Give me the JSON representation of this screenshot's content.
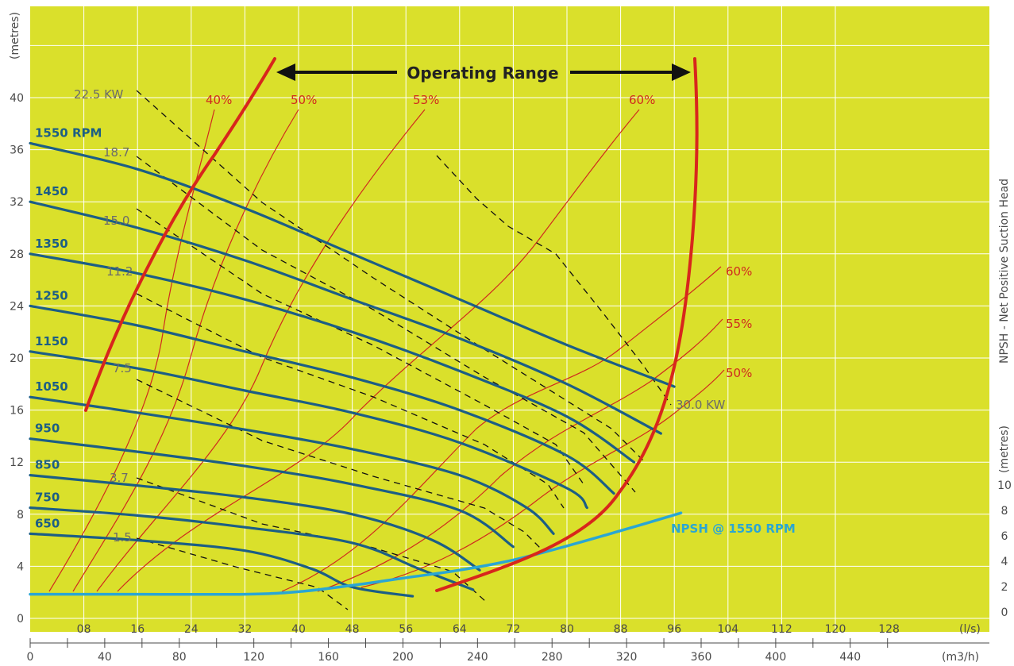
{
  "chart_data": {
    "type": "line",
    "x_axis_top": {
      "unit": "(l/s)",
      "ticks": [
        "08",
        "16",
        "24",
        "32",
        "40",
        "48",
        "56",
        "64",
        "72",
        "80",
        "88",
        "96",
        "104",
        "112",
        "120",
        "128"
      ]
    },
    "x_axis_bottom": {
      "unit": "(m3/h)",
      "ticks": [
        "0",
        "40",
        "80",
        "120",
        "160",
        "200",
        "240",
        "280",
        "320",
        "360",
        "400",
        "440"
      ]
    },
    "y_axis_left": {
      "unit": "(metres)",
      "ticks": [
        "0",
        "4",
        "8",
        "12",
        "16",
        "20",
        "24",
        "28",
        "32",
        "36",
        "40"
      ]
    },
    "y_axis_right": {
      "title": "NPSH - Net Positive Suction Head",
      "unit": "(metres)",
      "ticks": [
        "0",
        "2",
        "4",
        "6",
        "8",
        "10"
      ]
    },
    "speed_curves": {
      "color": "#1c5e85",
      "series": [
        {
          "label": "1550 RPM",
          "points": [
            [
              0,
              36.5
            ],
            [
              16,
              34.5
            ],
            [
              32,
              31.5
            ],
            [
              48,
              28
            ],
            [
              64,
              24.5
            ],
            [
              80,
              21
            ],
            [
              96,
              17.8
            ]
          ]
        },
        {
          "label": "1450",
          "points": [
            [
              0,
              32
            ],
            [
              16,
              30
            ],
            [
              32,
              27.5
            ],
            [
              48,
              24.5
            ],
            [
              64,
              21.5
            ],
            [
              80,
              18
            ],
            [
              94,
              14.2
            ]
          ]
        },
        {
          "label": "1350",
          "points": [
            [
              0,
              28
            ],
            [
              16,
              26.5
            ],
            [
              32,
              24.5
            ],
            [
              48,
              22
            ],
            [
              64,
              19
            ],
            [
              80,
              15.5
            ],
            [
              90,
              12
            ]
          ]
        },
        {
          "label": "1250",
          "points": [
            [
              0,
              24
            ],
            [
              16,
              22.5
            ],
            [
              32,
              20.5
            ],
            [
              48,
              18.5
            ],
            [
              64,
              16
            ],
            [
              80,
              12.5
            ],
            [
              87,
              9.6
            ]
          ]
        },
        {
          "label": "1150",
          "points": [
            [
              0,
              20.5
            ],
            [
              16,
              19.2
            ],
            [
              32,
              17.5
            ],
            [
              48,
              15.8
            ],
            [
              64,
              13.5
            ],
            [
              80,
              10
            ],
            [
              83,
              8.5
            ]
          ]
        },
        {
          "label": "1050",
          "points": [
            [
              0,
              17
            ],
            [
              16,
              15.8
            ],
            [
              32,
              14.5
            ],
            [
              48,
              13
            ],
            [
              64,
              11
            ],
            [
              74,
              8.5
            ],
            [
              78,
              6.5
            ]
          ]
        },
        {
          "label": "950",
          "points": [
            [
              0,
              13.8
            ],
            [
              16,
              12.8
            ],
            [
              32,
              11.7
            ],
            [
              48,
              10.3
            ],
            [
              64,
              8.3
            ],
            [
              72,
              5.5
            ]
          ]
        },
        {
          "label": "850",
          "points": [
            [
              0,
              11
            ],
            [
              16,
              10.2
            ],
            [
              32,
              9.3
            ],
            [
              48,
              8
            ],
            [
              60,
              6
            ],
            [
              67,
              3.7
            ]
          ]
        },
        {
          "label": "750",
          "points": [
            [
              0,
              8.5
            ],
            [
              16,
              7.9
            ],
            [
              32,
              7
            ],
            [
              48,
              5.8
            ],
            [
              58,
              3.8
            ],
            [
              66,
              2.2
            ]
          ]
        },
        {
          "label": "650",
          "points": [
            [
              0,
              6.5
            ],
            [
              16,
              6
            ],
            [
              32,
              5.2
            ],
            [
              42,
              3.8
            ],
            [
              48,
              2.4
            ],
            [
              57,
              1.7
            ]
          ]
        }
      ]
    },
    "power_lines": {
      "color": "#111111",
      "labels": [
        "22.5 KW",
        "18.7",
        "15.0",
        "11.2",
        "7.5",
        "3.7",
        "1.5",
        "30.0 KW"
      ]
    },
    "efficiency_curves": {
      "color": "#d02a1e",
      "labels": [
        "40%",
        "50%",
        "53%",
        "60%",
        "60%",
        "55%",
        "50%"
      ]
    },
    "operating_range": {
      "label": "Operating Range",
      "color": "#d8261c"
    },
    "npsh_curve": {
      "label": "NPSH @ 1550 RPM",
      "color": "#2aa6d3",
      "points": [
        [
          0,
          1.4
        ],
        [
          16,
          1.4
        ],
        [
          32,
          1.4
        ],
        [
          40,
          1.6
        ],
        [
          48,
          2.1
        ],
        [
          56,
          2.7
        ],
        [
          64,
          3.3
        ],
        [
          72,
          4.1
        ],
        [
          80,
          5.2
        ],
        [
          88,
          6.4
        ],
        [
          97,
          7.8
        ]
      ]
    },
    "colors": {
      "background": "#dae02b",
      "grid": "#ffffff"
    }
  }
}
